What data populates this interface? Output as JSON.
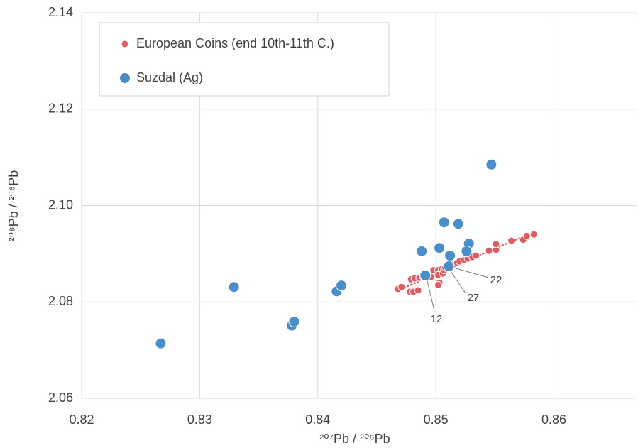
{
  "chart_data": {
    "type": "scatter",
    "x_label": "²⁰⁷Pb / ²⁰⁶Pb",
    "y_label": "²⁰⁸Pb / ²⁰⁶Pb",
    "xlim": [
      0.82,
      0.867
    ],
    "ylim": [
      2.06,
      2.14
    ],
    "xticks": [
      0.82,
      0.83,
      0.84,
      0.85,
      0.86
    ],
    "yticks": [
      2.06,
      2.08,
      {
        "value": 2.1,
        "label": "2.10"
      },
      2.12,
      2.14
    ],
    "grid": true,
    "legend": "upper-left",
    "trendline": true,
    "series": [
      {
        "name": "European Coins (end 10th-11th C.)",
        "color": "#e05a5f",
        "x": [
          0.8468,
          0.8471,
          0.8478,
          0.8481,
          0.8485,
          0.8479,
          0.8482,
          0.8486,
          0.8489,
          0.8492,
          0.8496,
          0.8498,
          0.8502,
          0.8505,
          0.8502,
          0.8503,
          0.8502,
          0.8506,
          0.8509,
          0.8512,
          0.8515,
          0.8518,
          0.852,
          0.8524,
          0.8527,
          0.8531,
          0.8534,
          0.8545,
          0.8551,
          0.8551,
          0.8564,
          0.8574,
          0.8577,
          0.8583,
          0.8507,
          0.8508
        ],
        "values": [
          2.0827,
          2.0831,
          2.0821,
          2.0821,
          2.0824,
          2.0847,
          2.0849,
          2.085,
          2.0853,
          2.0855,
          2.0852,
          2.0866,
          2.0866,
          2.0868,
          2.0856,
          2.084,
          2.0835,
          2.0859,
          2.0872,
          2.0875,
          2.0878,
          2.0881,
          2.0884,
          2.0887,
          2.089,
          2.0893,
          2.0896,
          2.0906,
          2.0908,
          2.092,
          2.0927,
          2.0929,
          2.0937,
          2.094,
          2.0866,
          2.0871
        ]
      },
      {
        "name": "Suzdal (Ag)",
        "color": "#4a8dcb",
        "x": [
          0.8267,
          0.8329,
          0.8378,
          0.838,
          0.8416,
          0.842,
          0.8488,
          0.8503,
          0.8507,
          0.8519,
          0.8528,
          0.8526,
          0.8512,
          0.8511,
          0.8491,
          0.8547
        ],
        "values": [
          2.0714,
          2.0831,
          2.0751,
          2.0759,
          2.0822,
          2.0834,
          2.0905,
          2.0912,
          2.0965,
          2.0962,
          2.0921,
          2.0905,
          2.0896,
          2.0874,
          2.0855,
          2.1085
        ]
      }
    ],
    "annotations": [
      "22",
      "27",
      "12"
    ]
  }
}
